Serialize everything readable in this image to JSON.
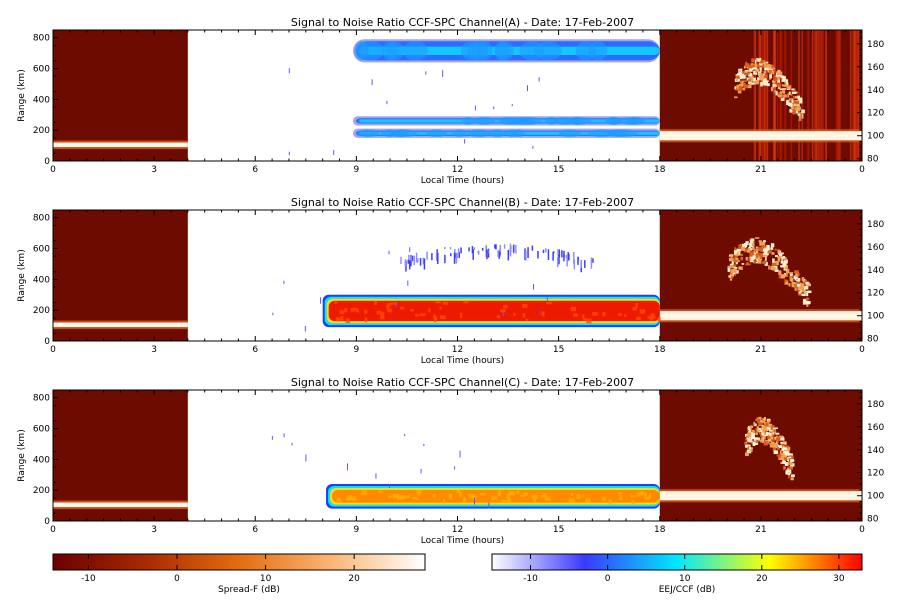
{
  "chart_data": [
    {
      "type": "heatmap",
      "title": "Signal to Noise Ratio CCF-SPC Channel(A) - Date: 17-Feb-2007",
      "xlabel": "Local Time (hours)",
      "ylabel": "Range (km)",
      "xlim": [
        0,
        24
      ],
      "xticks": [
        "0",
        "3",
        "6",
        "9",
        "12",
        "15",
        "18",
        "21",
        "0"
      ],
      "ylim": [
        0,
        850
      ],
      "yticks": [
        "0",
        "200",
        "400",
        "600",
        "800"
      ],
      "right_ylim": [
        78,
        192
      ],
      "right_yticks": [
        "80",
        "100",
        "120",
        "140",
        "160",
        "180"
      ],
      "spreadf_panels": [
        {
          "x_range": [
            0,
            4
          ],
          "colorbar": "Spread-F",
          "echo_layer_km": [
            90,
            120
          ],
          "peak_db": 25
        },
        {
          "x_range": [
            18,
            24
          ],
          "colorbar": "Spread-F",
          "echo_layer_km": [
            96,
            104
          ],
          "plume_km": [
            110,
            165
          ],
          "plume_hours": [
            20.2,
            22.2
          ],
          "vertical_streaks": true,
          "peak_db": 25
        }
      ],
      "ccf_bands": [
        {
          "range_km": [
            150,
            210
          ],
          "x_range": [
            8.9,
            18
          ],
          "peak_db": 5
        },
        {
          "range_km": [
            230,
            290
          ],
          "x_range": [
            8.9,
            18
          ],
          "peak_db": 3
        },
        {
          "range_km": [
            640,
            790
          ],
          "x_range": [
            8.9,
            18
          ],
          "peak_db": 2
        }
      ]
    },
    {
      "type": "heatmap",
      "title": "Signal to Noise Ratio CCF-SPC Channel(B) - Date: 17-Feb-2007",
      "xlabel": "Local Time (hours)",
      "ylabel": "Range (km)",
      "xlim": [
        0,
        24
      ],
      "xticks": [
        "0",
        "3",
        "6",
        "9",
        "12",
        "15",
        "18",
        "21",
        "0"
      ],
      "ylim": [
        0,
        850
      ],
      "yticks": [
        "0",
        "200",
        "400",
        "600",
        "800"
      ],
      "right_ylim": [
        78,
        192
      ],
      "right_yticks": [
        "80",
        "100",
        "120",
        "140",
        "160",
        "180"
      ],
      "spreadf_panels": [
        {
          "x_range": [
            0,
            4
          ],
          "colorbar": "Spread-F",
          "echo_layer_km": [
            90,
            120
          ],
          "peak_db": 25
        },
        {
          "x_range": [
            18,
            24
          ],
          "colorbar": "Spread-F",
          "echo_layer_km": [
            96,
            104
          ],
          "plume_km": [
            108,
            165
          ],
          "plume_hours": [
            20.0,
            22.4
          ],
          "peak_db": 25
        }
      ],
      "ccf_bands": [
        {
          "range_km": [
            90,
            300
          ],
          "x_range": [
            8.0,
            18
          ],
          "peak_db": 32
        },
        {
          "range_km": [
            450,
            620
          ],
          "x_range": [
            10.3,
            16.0
          ],
          "peak_db": -5
        }
      ]
    },
    {
      "type": "heatmap",
      "title": "Signal to Noise Ratio CCF-SPC Channel(C) - Date: 17-Feb-2007",
      "xlabel": "Local Time (hours)",
      "ylabel": "Range (km)",
      "xlim": [
        0,
        24
      ],
      "xticks": [
        "0",
        "3",
        "6",
        "9",
        "12",
        "15",
        "18",
        "21",
        "0"
      ],
      "ylim": [
        0,
        850
      ],
      "yticks": [
        "0",
        "200",
        "400",
        "600",
        "800"
      ],
      "right_ylim": [
        78,
        192
      ],
      "right_yticks": [
        "80",
        "100",
        "120",
        "140",
        "160",
        "180"
      ],
      "spreadf_panels": [
        {
          "x_range": [
            0,
            4
          ],
          "colorbar": "Spread-F",
          "echo_layer_km": [
            90,
            120
          ],
          "peak_db": 25
        },
        {
          "x_range": [
            18,
            24
          ],
          "colorbar": "Spread-F",
          "echo_layer_km": [
            96,
            104
          ],
          "plume_km": [
            115,
            165
          ],
          "plume_hours": [
            20.5,
            21.9
          ],
          "peak_db": 25
        }
      ],
      "ccf_bands": [
        {
          "range_km": [
            80,
            240
          ],
          "x_range": [
            8.1,
            18
          ],
          "peak_db": 25
        }
      ]
    }
  ],
  "colorbars": [
    {
      "label": "Spread-F (dB)",
      "range": [
        -14,
        28
      ],
      "ticks": [
        "-10",
        "0",
        "10",
        "20"
      ],
      "colors": [
        "#6a0000",
        "#a82a00",
        "#e46c10",
        "#fbb675",
        "#ffffff"
      ]
    },
    {
      "label": "EEJ/CCF (dB)",
      "range": [
        -15,
        33
      ],
      "ticks": [
        "-10",
        "0",
        "10",
        "20",
        "30"
      ],
      "colors": [
        "#ffffff",
        "#3a3aff",
        "#00e8ff",
        "#ffff00",
        "#ff0000"
      ]
    }
  ]
}
